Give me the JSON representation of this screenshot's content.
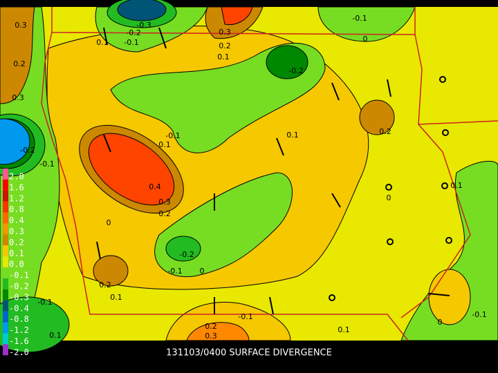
{
  "title": "131103/0400 SURFACE DIVERGENCE",
  "legend": [
    {
      "label": "2.0",
      "color": "#ff5599"
    },
    {
      "label": "1.6",
      "color": "#ff0000"
    },
    {
      "label": "1.2",
      "color": "#cc1100"
    },
    {
      "label": "0.8",
      "color": "#ff3300"
    },
    {
      "label": "0.4",
      "color": "#ff6600"
    },
    {
      "label": "0.3",
      "color": "#ee9900"
    },
    {
      "label": "0.2",
      "color": "#cc8800"
    },
    {
      "label": "0.1",
      "color": "#f5c800"
    },
    {
      "label": "0.0",
      "color": "#e8e800"
    },
    {
      "label": "-0.1",
      "color": "#77dd22"
    },
    {
      "label": "-0.2",
      "color": "#22bb22"
    },
    {
      "label": "-0.3",
      "color": "#008800"
    },
    {
      "label": "-0.4",
      "color": "#005577"
    },
    {
      "label": "-0.8",
      "color": "#0066cc"
    },
    {
      "label": "-1.2",
      "color": "#0099ee"
    },
    {
      "label": "-1.6",
      "color": "#00cccc"
    },
    {
      "label": "-2.0",
      "color": "#9933cc"
    }
  ],
  "contour_labels": [
    "0.3",
    "-0.3",
    "-0.2",
    "-0.1",
    "0.1",
    "0.3",
    "0.2",
    "0.1",
    "-0.1",
    "0",
    "-0.2",
    "0.2",
    "0.3",
    "0.1",
    "0.2",
    "-0.1",
    "0.1",
    "-0.2",
    "-0.1",
    "0.4",
    "0.3",
    "0.2",
    "0",
    "0.1",
    "0",
    "-0.2",
    "-0.1",
    "0",
    "0.2",
    "-0.1",
    "0.1",
    "-0.1",
    "0.2",
    "0.3",
    "0.1",
    "0.1",
    "0",
    "-0.1"
  ]
}
